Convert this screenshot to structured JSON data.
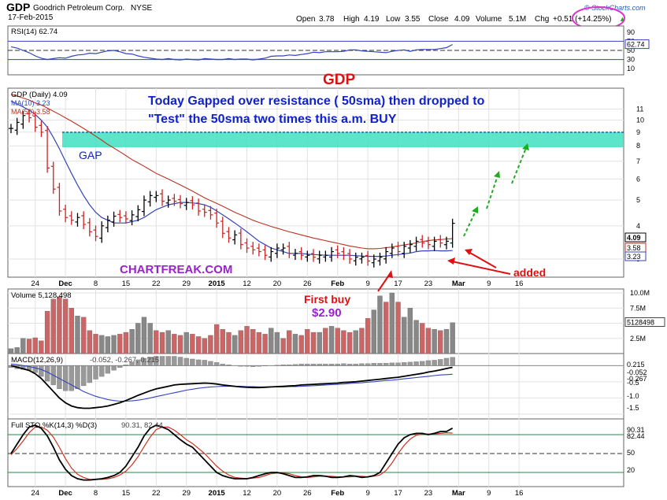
{
  "header": {
    "symbol": "GDP",
    "company": "Goodrich Petroleum Corp.",
    "exchange": "NYSE",
    "date": "17-Feb-2015",
    "brand": "© StockCharts.com",
    "open_label": "Open",
    "open": "3.78",
    "high_label": "High",
    "high": "4.19",
    "low_label": "Low",
    "low": "3.55",
    "close_label": "Close",
    "close": "4.09",
    "volume_label": "Volume",
    "volume": "5.1M",
    "chg_label": "Chg",
    "chg": "+0.51 (+14.25%)",
    "chg_arrow": "▲"
  },
  "colors": {
    "up": "#000000",
    "down": "#cc2222",
    "ma10": "#3344bb",
    "ma50": "#bb3322",
    "gap_fill": "#40e0c0",
    "note": "#1122cc",
    "chartfreak": "#9922cc",
    "green_arrow": "#22aa22",
    "red_annot": "#dd1111",
    "circle": "#dd33cc",
    "vol_up": "#888888",
    "vol_down": "#cc6666"
  },
  "annotations": {
    "big_title": "GDP",
    "note_line1": "Today Gapped over resistance ( 50sma) then dropped to",
    "note_line2": "\"Test\" the 50sma two times this a.m.  BUY",
    "gap": "GAP",
    "chartfreak": "CHARTFREAK.COM",
    "first_buy": "First buy",
    "first_buy_price": "$2.90",
    "added": "added"
  },
  "chart_data": [
    {
      "type": "line",
      "panel": "RSI",
      "label": "RSI(14) 62.74",
      "last_value": "62.74",
      "ylim": [
        0,
        100
      ],
      "y_ticks": [
        "90",
        "70",
        "50",
        "30",
        "10"
      ],
      "values": [
        58,
        55,
        50,
        45,
        38,
        33,
        30,
        32,
        34,
        33,
        37,
        40,
        41,
        44,
        43,
        46,
        49,
        50,
        47,
        43,
        42,
        38,
        35,
        33,
        31,
        30,
        32,
        30,
        29,
        31,
        30,
        29,
        32,
        31,
        30,
        30,
        32,
        30,
        31,
        31,
        29,
        31,
        33,
        37,
        38,
        38,
        40,
        39,
        41,
        43,
        46,
        45,
        47,
        47,
        47,
        48,
        51,
        51,
        49,
        48,
        47,
        46,
        45,
        48,
        50,
        51,
        48,
        51,
        52,
        52,
        52,
        54,
        56,
        63
      ]
    },
    {
      "type": "bar",
      "panel": "price",
      "label": "GDP (Daily) 4.09",
      "ma_labels": [
        "MA(10) 3.23",
        "MA(50) 3.58"
      ],
      "scale": "log",
      "ylim": [
        2.6,
        13
      ],
      "y_ticks": [
        "11",
        "10",
        "9",
        "8",
        "7",
        "6",
        "5",
        "4",
        "3"
      ],
      "price_tags": [
        "4.09",
        "3.58",
        "3.23"
      ],
      "x_tick_labels": [
        "24",
        "Dec",
        "8",
        "15",
        "22",
        "29",
        "2015",
        "12",
        "20",
        "26",
        "Feb",
        "9",
        "17",
        "23",
        "Mar",
        "9",
        "16"
      ],
      "gap_zone": [
        7.9,
        9.0
      ],
      "close": [
        9.3,
        9.8,
        10.4,
        10.2,
        9.4,
        9.0,
        6.6,
        5.5,
        4.55,
        4.3,
        4.2,
        4.3,
        4.05,
        3.8,
        3.65,
        4.0,
        4.2,
        4.35,
        4.3,
        4.25,
        4.4,
        4.6,
        5.0,
        5.2,
        5.2,
        4.95,
        5.0,
        4.95,
        4.85,
        4.9,
        4.8,
        4.55,
        4.5,
        4.4,
        4.1,
        3.75,
        3.6,
        3.7,
        3.4,
        3.3,
        3.25,
        3.2,
        3.1,
        3.2,
        3.3,
        3.3,
        3.15,
        3.15,
        3.1,
        3.1,
        3.05,
        3.1,
        3.1,
        3.2,
        3.15,
        3.1,
        3.0,
        3.05,
        3.05,
        2.95,
        3.0,
        3.05,
        3.2,
        3.3,
        3.2,
        3.35,
        3.4,
        3.5,
        3.45,
        3.4,
        3.5,
        3.45,
        3.5,
        4.09
      ],
      "ma10": [
        11.8,
        11.5,
        11.2,
        10.9,
        10.5,
        10.0,
        9.4,
        8.6,
        7.8,
        7.0,
        6.3,
        5.7,
        5.2,
        4.8,
        4.5,
        4.3,
        4.2,
        4.1,
        4.1,
        4.1,
        4.15,
        4.2,
        4.3,
        4.45,
        4.6,
        4.7,
        4.8,
        4.85,
        4.9,
        4.9,
        4.88,
        4.85,
        4.8,
        4.7,
        4.55,
        4.4,
        4.25,
        4.1,
        3.95,
        3.8,
        3.65,
        3.5,
        3.4,
        3.3,
        3.25,
        3.2,
        3.15,
        3.15,
        3.15,
        3.13,
        3.12,
        3.11,
        3.1,
        3.1,
        3.1,
        3.1,
        3.1,
        3.09,
        3.08,
        3.07,
        3.07,
        3.07,
        3.08,
        3.1,
        3.12,
        3.14,
        3.16,
        3.2,
        3.22,
        3.22,
        3.23,
        3.22,
        3.22,
        3.23
      ],
      "ma50": [
        12.5,
        12.3,
        12.1,
        11.9,
        11.6,
        11.4,
        11.1,
        10.8,
        10.5,
        10.2,
        9.9,
        9.6,
        9.3,
        9.0,
        8.7,
        8.4,
        8.1,
        7.85,
        7.6,
        7.35,
        7.1,
        6.9,
        6.7,
        6.5,
        6.3,
        6.15,
        6.0,
        5.85,
        5.7,
        5.55,
        5.4,
        5.25,
        5.1,
        4.98,
        4.86,
        4.74,
        4.62,
        4.5,
        4.4,
        4.3,
        4.2,
        4.12,
        4.05,
        3.98,
        3.92,
        3.86,
        3.8,
        3.75,
        3.7,
        3.65,
        3.6,
        3.56,
        3.52,
        3.48,
        3.44,
        3.4,
        3.36,
        3.33,
        3.3,
        3.28,
        3.28,
        3.29,
        3.31,
        3.33,
        3.36,
        3.39,
        3.42,
        3.45,
        3.49,
        3.52,
        3.54,
        3.55,
        3.57,
        3.58
      ]
    },
    {
      "type": "bar",
      "panel": "volume",
      "label": "Volume 5,128,498",
      "last_value": "5128498",
      "y_ticks": [
        "10.0M",
        "7.5M",
        "5.0M",
        "2.5M"
      ],
      "ylim_millions": [
        0,
        10
      ],
      "values_millions": [
        0.8,
        1.0,
        2.5,
        2.4,
        2.6,
        2.1,
        7.0,
        9.0,
        9.4,
        9.0,
        7.5,
        6.2,
        6.0,
        3.8,
        3.2,
        3.0,
        2.8,
        3.0,
        3.2,
        3.5,
        4.0,
        5.0,
        6.0,
        5.0,
        3.8,
        3.5,
        3.8,
        3.2,
        3.0,
        3.5,
        3.2,
        2.8,
        2.5,
        3.0,
        4.8,
        4.0,
        3.5,
        3.0,
        3.8,
        4.5,
        4.0,
        3.5,
        3.2,
        4.2,
        3.5,
        2.5,
        3.8,
        3.2,
        3.0,
        4.0,
        3.5,
        3.5,
        4.2,
        4.5,
        4.2,
        3.8,
        3.5,
        3.8,
        4.2,
        5.8,
        7.2,
        9.5,
        8.5,
        10.0,
        8.5,
        6.0,
        7.5,
        5.5,
        5.0,
        4.2,
        4.0,
        3.8,
        4.0,
        5.1
      ],
      "up_days": [
        true,
        true,
        true,
        false,
        false,
        false,
        false,
        false,
        false,
        false,
        false,
        true,
        false,
        false,
        false,
        true,
        true,
        true,
        false,
        false,
        true,
        true,
        true,
        true,
        false,
        false,
        true,
        false,
        false,
        true,
        false,
        false,
        false,
        false,
        false,
        false,
        false,
        true,
        false,
        false,
        false,
        false,
        false,
        true,
        true,
        false,
        false,
        true,
        false,
        false,
        false,
        true,
        false,
        true,
        false,
        false,
        false,
        true,
        false,
        false,
        true,
        true,
        false,
        true,
        false,
        true,
        true,
        true,
        false,
        false,
        true,
        false,
        true,
        true
      ]
    },
    {
      "type": "line",
      "panel": "MACD",
      "label_prefix": "MACD(12,26,9)",
      "label_values": "-0.052, -0.267, 0.215",
      "y_ticks": [
        "0.215",
        "-0.052",
        "-0.267",
        "-0.5",
        "-1.0",
        "-1.5"
      ],
      "ylim": [
        -1.6,
        0.3
      ],
      "macd": [
        0.0,
        -0.05,
        -0.1,
        -0.15,
        -0.25,
        -0.4,
        -0.6,
        -0.8,
        -1.0,
        -1.15,
        -1.25,
        -1.3,
        -1.32,
        -1.32,
        -1.3,
        -1.28,
        -1.25,
        -1.2,
        -1.15,
        -1.08,
        -1.0,
        -0.92,
        -0.85,
        -0.78,
        -0.72,
        -0.68,
        -0.64,
        -0.6,
        -0.58,
        -0.57,
        -0.56,
        -0.55,
        -0.54,
        -0.55,
        -0.57,
        -0.6,
        -0.62,
        -0.64,
        -0.66,
        -0.67,
        -0.68,
        -0.68,
        -0.67,
        -0.66,
        -0.65,
        -0.64,
        -0.63,
        -0.62,
        -0.6,
        -0.59,
        -0.58,
        -0.57,
        -0.56,
        -0.55,
        -0.54,
        -0.52,
        -0.51,
        -0.5,
        -0.48,
        -0.46,
        -0.44,
        -0.42,
        -0.4,
        -0.38,
        -0.36,
        -0.33,
        -0.3,
        -0.27,
        -0.24,
        -0.2,
        -0.17,
        -0.13,
        -0.09,
        -0.052
      ],
      "signal": [
        0.05,
        0.03,
        0.0,
        -0.03,
        -0.07,
        -0.12,
        -0.2,
        -0.3,
        -0.4,
        -0.5,
        -0.6,
        -0.7,
        -0.8,
        -0.88,
        -0.95,
        -1.0,
        -1.05,
        -1.08,
        -1.1,
        -1.1,
        -1.09,
        -1.07,
        -1.04,
        -1.0,
        -0.96,
        -0.92,
        -0.88,
        -0.84,
        -0.8,
        -0.76,
        -0.73,
        -0.7,
        -0.68,
        -0.66,
        -0.65,
        -0.64,
        -0.64,
        -0.64,
        -0.64,
        -0.65,
        -0.65,
        -0.66,
        -0.66,
        -0.66,
        -0.66,
        -0.66,
        -0.65,
        -0.65,
        -0.64,
        -0.63,
        -0.62,
        -0.61,
        -0.6,
        -0.59,
        -0.58,
        -0.57,
        -0.55,
        -0.54,
        -0.53,
        -0.51,
        -0.5,
        -0.48,
        -0.46,
        -0.45,
        -0.43,
        -0.41,
        -0.39,
        -0.37,
        -0.35,
        -0.33,
        -0.31,
        -0.29,
        -0.28,
        -0.267
      ]
    },
    {
      "type": "line",
      "panel": "STO",
      "label_prefix": "Full STO %K(14,3) %D(3)",
      "label_values": "90.31, 82.44",
      "y_ticks": [
        "90.31",
        "82.44",
        "50",
        "20"
      ],
      "ylim": [
        0,
        100
      ],
      "k": [
        50,
        65,
        80,
        92,
        95,
        90,
        78,
        60,
        40,
        25,
        15,
        10,
        8,
        8,
        9,
        10,
        12,
        15,
        20,
        30,
        45,
        60,
        78,
        90,
        95,
        92,
        88,
        80,
        72,
        65,
        60,
        50,
        40,
        30,
        20,
        15,
        12,
        10,
        10,
        10,
        12,
        15,
        18,
        20,
        20,
        18,
        15,
        12,
        12,
        13,
        15,
        15,
        14,
        12,
        12,
        13,
        15,
        14,
        12,
        13,
        15,
        20,
        35,
        50,
        65,
        75,
        80,
        82,
        82,
        80,
        82,
        85,
        85,
        90.31
      ],
      "d": [
        48,
        58,
        70,
        83,
        92,
        92,
        87,
        76,
        60,
        42,
        27,
        17,
        12,
        9,
        9,
        9,
        10,
        12,
        16,
        22,
        32,
        45,
        61,
        76,
        88,
        92,
        92,
        87,
        80,
        72,
        66,
        58,
        50,
        40,
        30,
        22,
        16,
        12,
        11,
        10,
        11,
        12,
        15,
        18,
        19,
        19,
        18,
        15,
        13,
        12,
        13,
        14,
        14,
        14,
        13,
        13,
        13,
        14,
        14,
        13,
        14,
        16,
        23,
        35,
        50,
        63,
        73,
        79,
        81,
        81,
        81,
        82,
        83,
        82.44
      ]
    }
  ]
}
